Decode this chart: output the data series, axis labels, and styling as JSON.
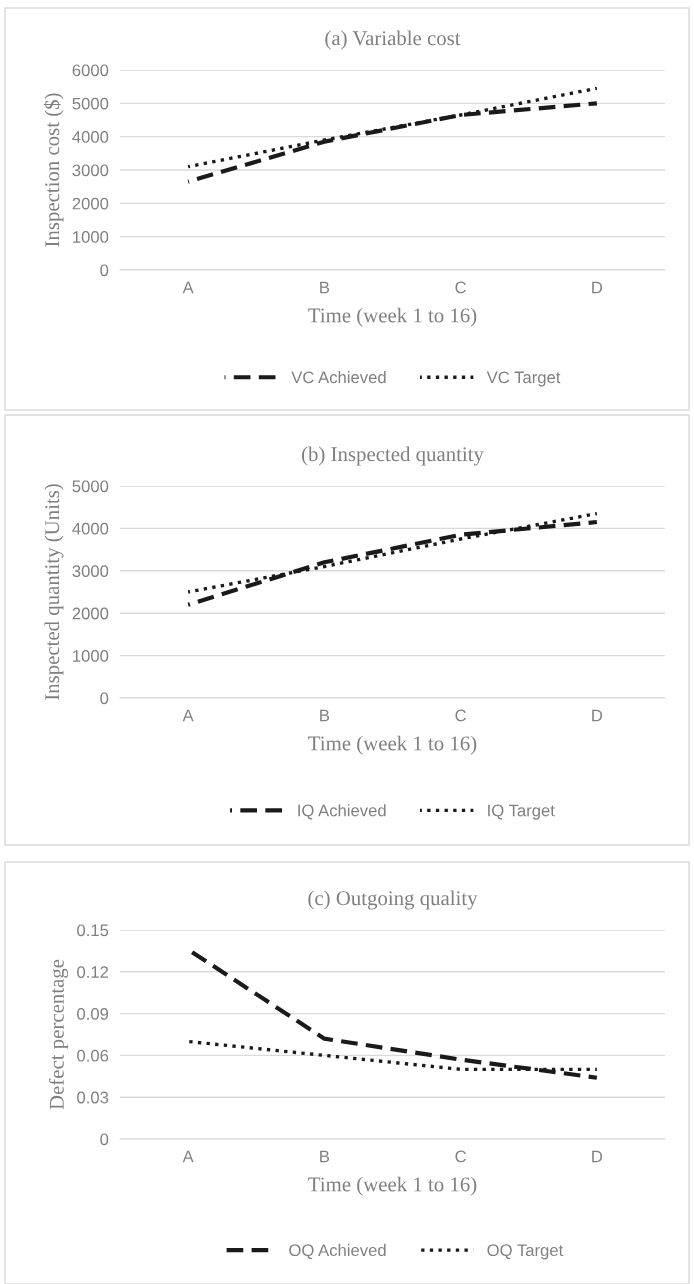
{
  "chart_data": [
    {
      "type": "line",
      "title": "(a) Variable cost",
      "xlabel": "Time (week 1 to 16)",
      "ylabel": "Inspection cost ($)",
      "categories": [
        "A",
        "B",
        "C",
        "D"
      ],
      "series": [
        {
          "name": "VC Achieved",
          "color": "#1a1a1a",
          "line_style": "dashed",
          "values": [
            2650,
            3850,
            4650,
            5000
          ]
        },
        {
          "name": "VC Target",
          "color": "#1a1a1a",
          "line_style": "dotted",
          "values": [
            3100,
            3900,
            4650,
            5450
          ]
        }
      ],
      "ylim": [
        0,
        6000
      ],
      "yticks": [
        0,
        1000,
        2000,
        3000,
        4000,
        5000,
        6000
      ],
      "grid": "y",
      "legend": "bottom",
      "marker": "none"
    },
    {
      "type": "line",
      "title": "(b) Inspected quantity",
      "xlabel": "Time (week 1 to 16)",
      "ylabel": "Inspected quantity (Units)",
      "categories": [
        "A",
        "B",
        "C",
        "D"
      ],
      "series": [
        {
          "name": "IQ Achieved",
          "color": "#1a1a1a",
          "line_style": "dashed",
          "values": [
            2200,
            3200,
            3850,
            4150
          ]
        },
        {
          "name": "IQ Target",
          "color": "#1a1a1a",
          "line_style": "dotted",
          "values": [
            2500,
            3100,
            3750,
            4350
          ]
        }
      ],
      "ylim": [
        0,
        5000
      ],
      "yticks": [
        0,
        1000,
        2000,
        3000,
        4000,
        5000
      ],
      "grid": "y",
      "legend": "bottom",
      "marker": "none"
    },
    {
      "type": "line",
      "title": "(c) Outgoing quality",
      "xlabel": "Time (week 1 to 16)",
      "ylabel": "Defect percentage",
      "categories": [
        "A",
        "B",
        "C",
        "D"
      ],
      "series": [
        {
          "name": "OQ Achieved",
          "color": "#1a1a1a",
          "line_style": "dashed",
          "values": [
            0.136,
            0.072,
            0.057,
            0.044
          ]
        },
        {
          "name": "OQ Target",
          "color": "#1a1a1a",
          "line_style": "dotted",
          "values": [
            0.07,
            0.06,
            0.05,
            0.05
          ]
        }
      ],
      "ylim": [
        0,
        0.15
      ],
      "yticks": [
        0,
        0.03,
        0.06,
        0.09,
        0.12,
        0.15
      ],
      "grid": "y",
      "legend": "bottom",
      "marker": "none"
    }
  ]
}
